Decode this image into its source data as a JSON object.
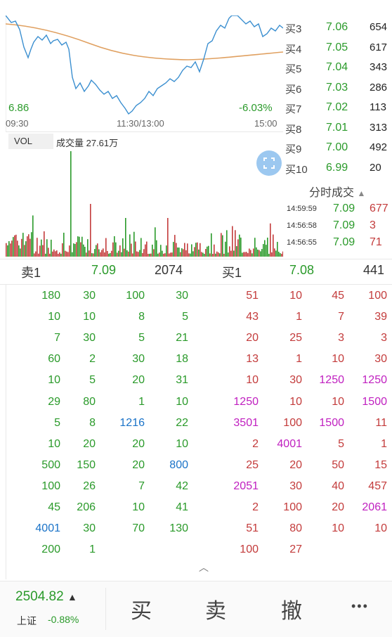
{
  "chart": {
    "price_low": "6.86",
    "change_pct": "-6.03%",
    "time_start": "09:30",
    "time_mid": "11:30/13:00",
    "time_end": "15:00",
    "vol_tab": "VOL",
    "volume_label": "成交量 27.61万"
  },
  "bids": [
    {
      "label": "买3",
      "price": "7.06",
      "qty": "654"
    },
    {
      "label": "买4",
      "price": "7.05",
      "qty": "617"
    },
    {
      "label": "买5",
      "price": "7.04",
      "qty": "343"
    },
    {
      "label": "买6",
      "price": "7.03",
      "qty": "286"
    },
    {
      "label": "买7",
      "price": "7.02",
      "qty": "113"
    },
    {
      "label": "买8",
      "price": "7.01",
      "qty": "313"
    },
    {
      "label": "买9",
      "price": "7.00",
      "qty": "492"
    },
    {
      "label": "买10",
      "price": "6.99",
      "qty": "20"
    }
  ],
  "trades": {
    "title": "分时成交",
    "items": [
      {
        "time": "14:59:59",
        "price": "7.09",
        "qty": "677"
      },
      {
        "time": "14:56:58",
        "price": "7.09",
        "qty": "3"
      },
      {
        "time": "14:56:55",
        "price": "7.09",
        "qty": "71"
      }
    ]
  },
  "summary": {
    "sell_label": "卖1",
    "sell_price": "7.09",
    "sell_qty": "2074",
    "buy_label": "买1",
    "buy_price": "7.08",
    "buy_qty": "441"
  },
  "queue_left": [
    [
      "180",
      "30",
      "100",
      "30"
    ],
    [
      "10",
      "10",
      "8",
      "5"
    ],
    [
      "7",
      "30",
      "5",
      "21"
    ],
    [
      "60",
      "2",
      "30",
      "18"
    ],
    [
      "10",
      "5",
      "20",
      "31"
    ],
    [
      "29",
      "80",
      "1",
      "10"
    ],
    [
      "5",
      "8",
      "1216",
      "22"
    ],
    [
      "10",
      "20",
      "20",
      "10"
    ],
    [
      "500",
      "150",
      "20",
      "800"
    ],
    [
      "100",
      "26",
      "7",
      "42"
    ],
    [
      "45",
      "206",
      "10",
      "41"
    ],
    [
      "4001",
      "30",
      "70",
      "130"
    ],
    [
      "200",
      "1",
      "",
      ""
    ]
  ],
  "queue_right": [
    [
      "51",
      "10",
      "45",
      "100"
    ],
    [
      "43",
      "1",
      "7",
      "39"
    ],
    [
      "20",
      "25",
      "3",
      "3"
    ],
    [
      "13",
      "1",
      "10",
      "30"
    ],
    [
      "10",
      "30",
      "1250",
      "1250"
    ],
    [
      "1250",
      "10",
      "10",
      "1500"
    ],
    [
      "3501",
      "100",
      "1500",
      "11"
    ],
    [
      "2",
      "4001",
      "5",
      "1"
    ],
    [
      "25",
      "20",
      "50",
      "15"
    ],
    [
      "2051",
      "30",
      "40",
      "457"
    ],
    [
      "2",
      "100",
      "20",
      "2061"
    ],
    [
      "51",
      "80",
      "10",
      "10"
    ],
    [
      "100",
      "27",
      "",
      ""
    ]
  ],
  "footer": {
    "index_value": "2504.82",
    "index_name": "上证",
    "index_change": "-0.88%",
    "buy": "买",
    "sell": "卖",
    "cancel": "撤",
    "more": "•••"
  },
  "colors": {
    "green": "#2a9a2a",
    "red": "#c33b3b",
    "magenta": "#c020c0",
    "blue": "#1a73c8",
    "price_line": "#3b8fd0",
    "avg_line": "#e0a060"
  }
}
